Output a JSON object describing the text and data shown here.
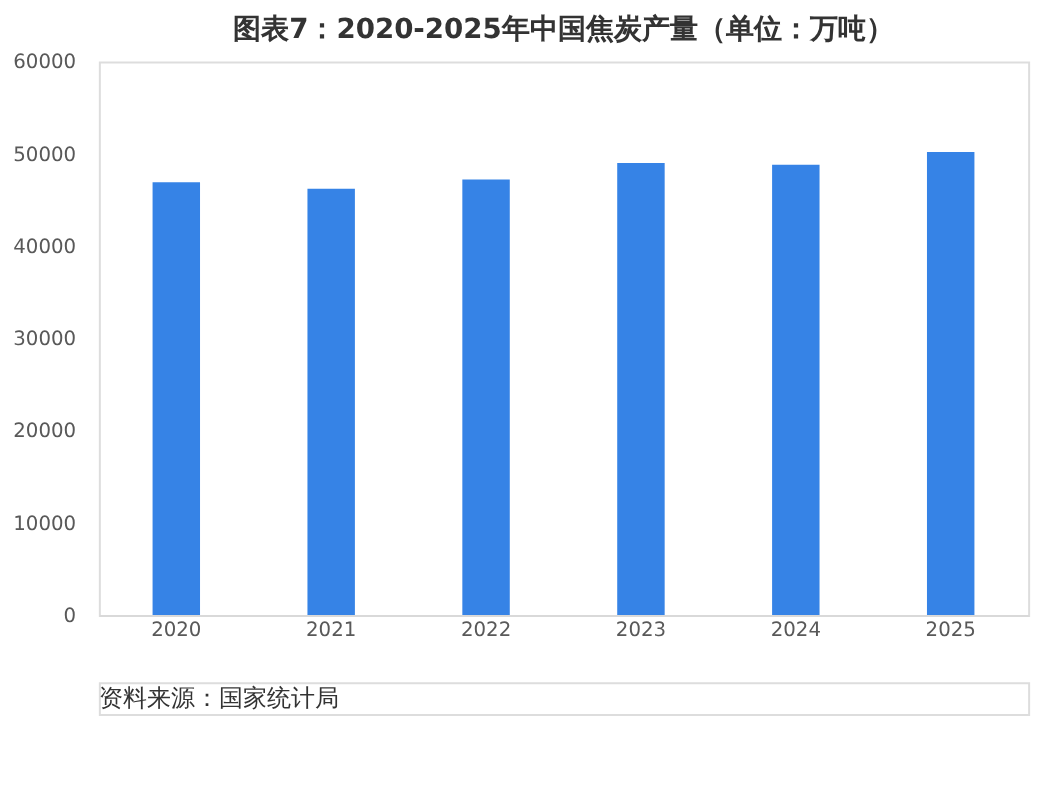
{
  "chart_data": {
    "type": "bar",
    "title": "图表7：2020-2025年中国焦炭产量（单位：万吨）",
    "categories": [
      "2020",
      "2021",
      "2022",
      "2023",
      "2024",
      "2025"
    ],
    "series": [
      {
        "color": "#3683e6",
        "values": [
          46900,
          46200,
          47200,
          49000,
          48800,
          50200
        ]
      }
    ],
    "ylim": [
      0,
      60000
    ],
    "yticks": [
      0,
      10000,
      20000,
      30000,
      40000,
      50000,
      60000
    ],
    "grid": false,
    "legend": false,
    "annotations": [
      "资料来源：国家统计局"
    ]
  }
}
